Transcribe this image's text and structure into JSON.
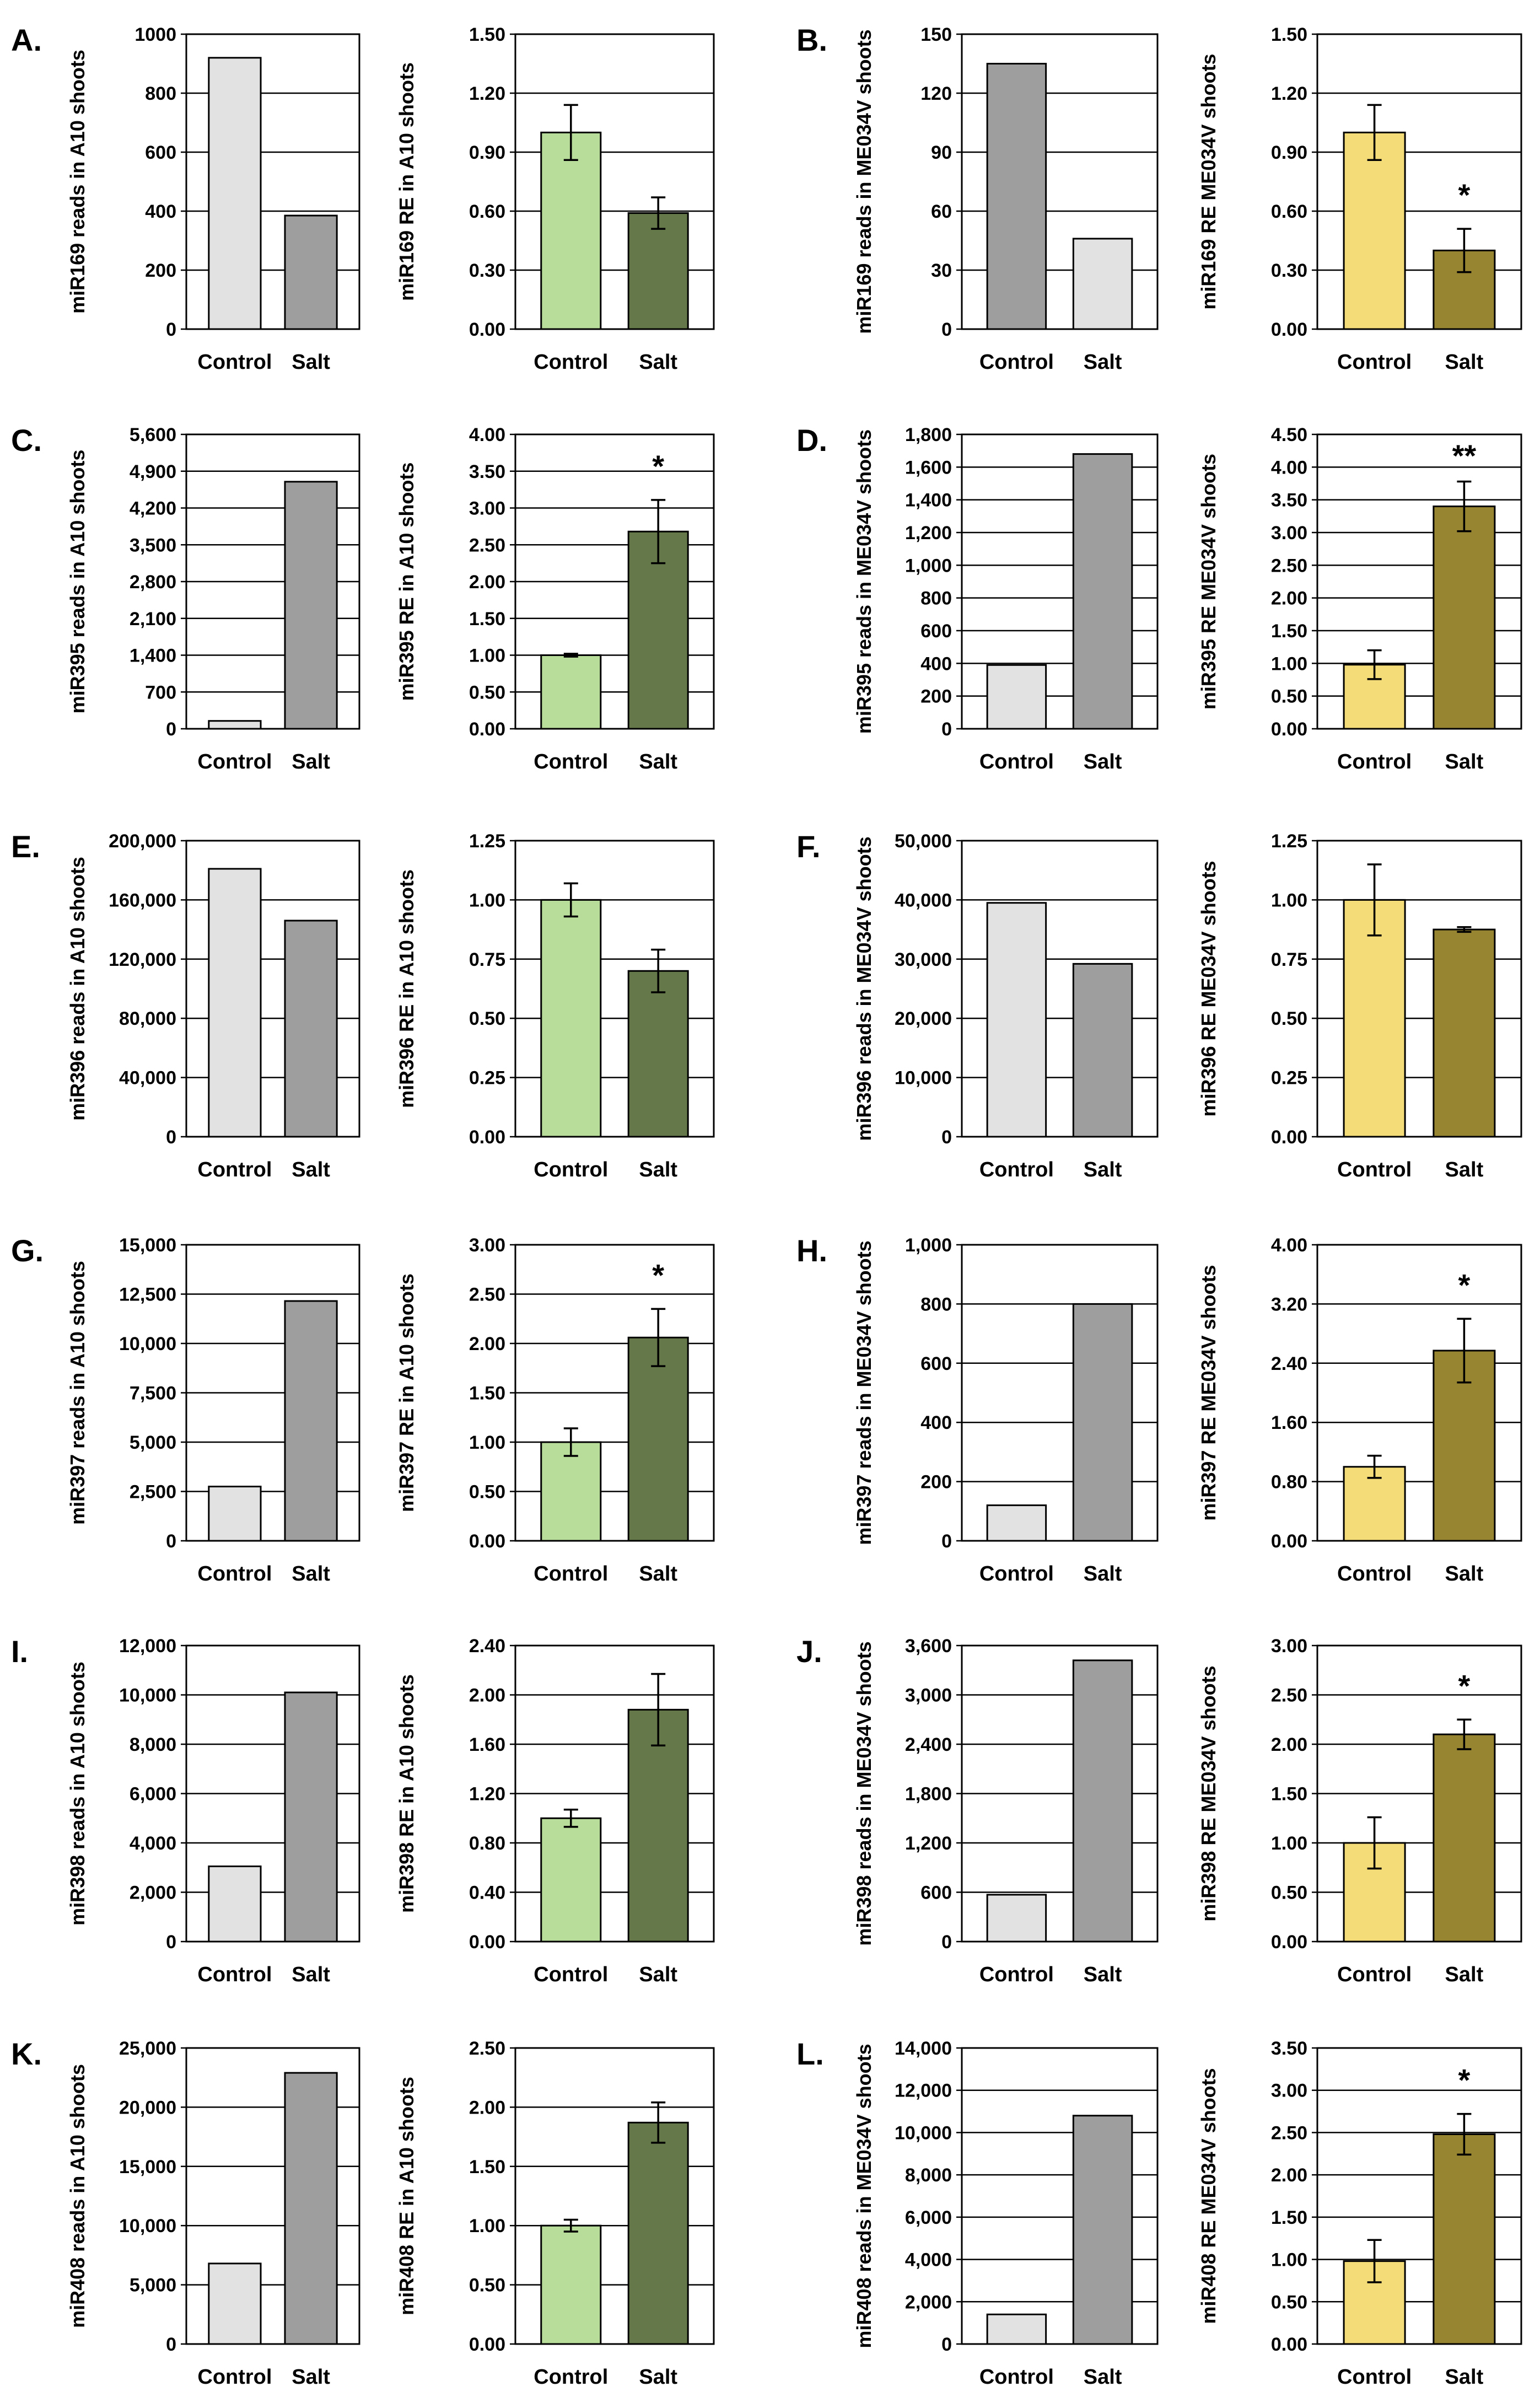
{
  "figure": {
    "background": "#ffffff"
  },
  "colors": {
    "reads_light": "#e2e2e2",
    "reads_dark": "#9e9e9e",
    "a10_control": "#b8dd9a",
    "a10_salt": "#65784a",
    "me_control": "#f4dc78",
    "me_salt": "#978532",
    "stroke": "#000000",
    "grid": "#000000"
  },
  "panels": [
    {
      "letter": "A."
    },
    {
      "letter": "B."
    },
    {
      "letter": "C."
    },
    {
      "letter": "D."
    },
    {
      "letter": "E."
    },
    {
      "letter": "F."
    },
    {
      "letter": "G."
    },
    {
      "letter": "H."
    },
    {
      "letter": "I."
    },
    {
      "letter": "J."
    },
    {
      "letter": "K."
    },
    {
      "letter": "L."
    }
  ],
  "chart_data": [
    {
      "type": "bar",
      "panel": "A.",
      "ylabel": "miR169 reads in A10 shoots",
      "categories": [
        "Control",
        "Salt"
      ],
      "values": [
        920,
        385
      ],
      "ylim": [
        0,
        1000
      ],
      "ticks": [
        "0",
        "200",
        "400",
        "600",
        "800",
        "1000"
      ],
      "bar_colors": [
        "reads_light",
        "reads_dark"
      ],
      "errors": null,
      "annotation": ""
    },
    {
      "type": "bar",
      "panel": "A.",
      "ylabel": "miR169 RE in A10 shoots",
      "categories": [
        "Control",
        "Salt"
      ],
      "values": [
        1.0,
        0.59
      ],
      "ylim": [
        0,
        1.5
      ],
      "ticks": [
        "0.00",
        "0.30",
        "0.60",
        "0.90",
        "1.20",
        "1.50"
      ],
      "bar_colors": [
        "a10_control",
        "a10_salt"
      ],
      "errors": [
        0.14,
        0.08
      ],
      "annotation": ""
    },
    {
      "type": "bar",
      "panel": "B.",
      "ylabel": "miR169 reads in ME034V shoots",
      "categories": [
        "Control",
        "Salt"
      ],
      "values": [
        135,
        46
      ],
      "ylim": [
        0,
        150
      ],
      "ticks": [
        "0",
        "30",
        "60",
        "90",
        "120",
        "150"
      ],
      "bar_colors": [
        "reads_dark",
        "reads_light"
      ],
      "errors": null,
      "annotation": ""
    },
    {
      "type": "bar",
      "panel": "B.",
      "ylabel": "miR169 RE ME034V shoots",
      "categories": [
        "Control",
        "Salt"
      ],
      "values": [
        1.0,
        0.4
      ],
      "ylim": [
        0,
        1.5
      ],
      "ticks": [
        "0.00",
        "0.30",
        "0.60",
        "0.90",
        "1.20",
        "1.50"
      ],
      "bar_colors": [
        "me_control",
        "me_salt"
      ],
      "errors": [
        0.14,
        0.11
      ],
      "annotation": "*"
    },
    {
      "type": "bar",
      "panel": "C.",
      "ylabel": "miR395 reads in A10 shoots",
      "categories": [
        "Control",
        "Salt"
      ],
      "values": [
        150,
        4700
      ],
      "ylim": [
        0,
        5600
      ],
      "ticks": [
        "0",
        "700",
        "1,400",
        "2,100",
        "2,800",
        "3,500",
        "4,200",
        "4,900",
        "5,600"
      ],
      "bar_colors": [
        "reads_light",
        "reads_dark"
      ],
      "errors": null,
      "annotation": ""
    },
    {
      "type": "bar",
      "panel": "C.",
      "ylabel": "miR395 RE in A10 shoots",
      "categories": [
        "Control",
        "Salt"
      ],
      "values": [
        1.0,
        2.68
      ],
      "ylim": [
        0,
        4.0
      ],
      "ticks": [
        "0.00",
        "0.50",
        "1.00",
        "1.50",
        "2.00",
        "2.50",
        "3.00",
        "3.50",
        "4.00"
      ],
      "bar_colors": [
        "a10_control",
        "a10_salt"
      ],
      "errors": [
        0.02,
        0.43
      ],
      "annotation": "*"
    },
    {
      "type": "bar",
      "panel": "D.",
      "ylabel": "miR395 reads in ME034V shoots",
      "categories": [
        "Control",
        "Salt"
      ],
      "values": [
        390,
        1680
      ],
      "ylim": [
        0,
        1800
      ],
      "ticks": [
        "0",
        "200",
        "400",
        "600",
        "800",
        "1,000",
        "1,200",
        "1,400",
        "1,600",
        "1,800"
      ],
      "bar_colors": [
        "reads_light",
        "reads_dark"
      ],
      "errors": null,
      "annotation": ""
    },
    {
      "type": "bar",
      "panel": "D.",
      "ylabel": "miR395 RE ME034V shoots",
      "categories": [
        "Control",
        "Salt"
      ],
      "values": [
        0.98,
        3.4
      ],
      "ylim": [
        0,
        4.5
      ],
      "ticks": [
        "0.00",
        "0.50",
        "1.00",
        "1.50",
        "2.00",
        "2.50",
        "3.00",
        "3.50",
        "4.00",
        "4.50"
      ],
      "bar_colors": [
        "me_control",
        "me_salt"
      ],
      "errors": [
        0.22,
        0.38
      ],
      "annotation": "**"
    },
    {
      "type": "bar",
      "panel": "E.",
      "ylabel": "miR396 reads in A10 shoots",
      "categories": [
        "Control",
        "Salt"
      ],
      "values": [
        181000,
        146000
      ],
      "ylim": [
        0,
        200000
      ],
      "ticks": [
        "0",
        "40,000",
        "80,000",
        "120,000",
        "160,000",
        "200,000"
      ],
      "bar_colors": [
        "reads_light",
        "reads_dark"
      ],
      "errors": null,
      "annotation": ""
    },
    {
      "type": "bar",
      "panel": "E.",
      "ylabel": "miR396 RE in A10 shoots",
      "categories": [
        "Control",
        "Salt"
      ],
      "values": [
        1.0,
        0.7
      ],
      "ylim": [
        0,
        1.25
      ],
      "ticks": [
        "0.00",
        "0.25",
        "0.50",
        "0.75",
        "1.00",
        "1.25"
      ],
      "bar_colors": [
        "a10_control",
        "a10_salt"
      ],
      "errors": [
        0.07,
        0.09
      ],
      "annotation": ""
    },
    {
      "type": "bar",
      "panel": "F.",
      "ylabel": "miR396 reads in ME034V shoots",
      "categories": [
        "Control",
        "Salt"
      ],
      "values": [
        39500,
        29200
      ],
      "ylim": [
        0,
        50000
      ],
      "ticks": [
        "0",
        "10,000",
        "20,000",
        "30,000",
        "40,000",
        "50,000"
      ],
      "bar_colors": [
        "reads_light",
        "reads_dark"
      ],
      "errors": null,
      "annotation": ""
    },
    {
      "type": "bar",
      "panel": "F.",
      "ylabel": "miR396 RE ME034V shoots",
      "categories": [
        "Control",
        "Salt"
      ],
      "values": [
        1.0,
        0.875
      ],
      "ylim": [
        0,
        1.25
      ],
      "ticks": [
        "0.00",
        "0.25",
        "0.50",
        "0.75",
        "1.00",
        "1.25"
      ],
      "bar_colors": [
        "me_control",
        "me_salt"
      ],
      "errors": [
        0.15,
        0.01
      ],
      "annotation": ""
    },
    {
      "type": "bar",
      "panel": "G.",
      "ylabel": "miR397 reads in A10 shoots",
      "categories": [
        "Control",
        "Salt"
      ],
      "values": [
        2750,
        12150
      ],
      "ylim": [
        0,
        15000
      ],
      "ticks": [
        "0",
        "2,500",
        "5,000",
        "7,500",
        "10,000",
        "12,500",
        "15,000"
      ],
      "bar_colors": [
        "reads_light",
        "reads_dark"
      ],
      "errors": null,
      "annotation": ""
    },
    {
      "type": "bar",
      "panel": "G.",
      "ylabel": "miR397 RE in A10 shoots",
      "categories": [
        "Control",
        "Salt"
      ],
      "values": [
        1.0,
        2.06
      ],
      "ylim": [
        0,
        3.0
      ],
      "ticks": [
        "0.00",
        "0.50",
        "1.00",
        "1.50",
        "2.00",
        "2.50",
        "3.00"
      ],
      "bar_colors": [
        "a10_control",
        "a10_salt"
      ],
      "errors": [
        0.14,
        0.29
      ],
      "annotation": "*"
    },
    {
      "type": "bar",
      "panel": "H.",
      "ylabel": "miR397 reads in ME034V shoots",
      "categories": [
        "Control",
        "Salt"
      ],
      "values": [
        120,
        800
      ],
      "ylim": [
        0,
        1000
      ],
      "ticks": [
        "0",
        "200",
        "400",
        "600",
        "800",
        "1,000"
      ],
      "bar_colors": [
        "reads_light",
        "reads_dark"
      ],
      "errors": null,
      "annotation": ""
    },
    {
      "type": "bar",
      "panel": "H.",
      "ylabel": "miR397 RE ME034V shoots",
      "categories": [
        "Control",
        "Salt"
      ],
      "values": [
        1.0,
        2.57
      ],
      "ylim": [
        0,
        4.0
      ],
      "ticks": [
        "0.00",
        "0.80",
        "1.60",
        "2.40",
        "3.20",
        "4.00"
      ],
      "bar_colors": [
        "me_control",
        "me_salt"
      ],
      "errors": [
        0.15,
        0.43
      ],
      "annotation": "*"
    },
    {
      "type": "bar",
      "panel": "I.",
      "ylabel": "miR398 reads in A10 shoots",
      "categories": [
        "Control",
        "Salt"
      ],
      "values": [
        3050,
        10100
      ],
      "ylim": [
        0,
        12000
      ],
      "ticks": [
        "0",
        "2,000",
        "4,000",
        "6,000",
        "8,000",
        "10,000",
        "12,000"
      ],
      "bar_colors": [
        "reads_light",
        "reads_dark"
      ],
      "errors": null,
      "annotation": ""
    },
    {
      "type": "bar",
      "panel": "I.",
      "ylabel": "miR398 RE in A10 shoots",
      "categories": [
        "Control",
        "Salt"
      ],
      "values": [
        1.0,
        1.88
      ],
      "ylim": [
        0,
        2.4
      ],
      "ticks": [
        "0.00",
        "0.40",
        "0.80",
        "1.20",
        "1.60",
        "2.00",
        "2.40"
      ],
      "bar_colors": [
        "a10_control",
        "a10_salt"
      ],
      "errors": [
        0.07,
        0.29
      ],
      "annotation": ""
    },
    {
      "type": "bar",
      "panel": "J.",
      "ylabel": "miR398 reads in ME034V shoots",
      "categories": [
        "Control",
        "Salt"
      ],
      "values": [
        570,
        3420
      ],
      "ylim": [
        0,
        3600
      ],
      "ticks": [
        "0",
        "600",
        "1,200",
        "1,800",
        "2,400",
        "3,000",
        "3,600"
      ],
      "bar_colors": [
        "reads_light",
        "reads_dark"
      ],
      "errors": null,
      "annotation": ""
    },
    {
      "type": "bar",
      "panel": "J.",
      "ylabel": "miR398 RE ME034V shoots",
      "categories": [
        "Control",
        "Salt"
      ],
      "values": [
        1.0,
        2.1
      ],
      "ylim": [
        0,
        3.0
      ],
      "ticks": [
        "0.00",
        "0.50",
        "1.00",
        "1.50",
        "2.00",
        "2.50",
        "3.00"
      ],
      "bar_colors": [
        "me_control",
        "me_salt"
      ],
      "errors": [
        0.26,
        0.15
      ],
      "annotation": "*"
    },
    {
      "type": "bar",
      "panel": "K.",
      "ylabel": "miR408 reads in A10 shoots",
      "categories": [
        "Control",
        "Salt"
      ],
      "values": [
        6800,
        22900
      ],
      "ylim": [
        0,
        25000
      ],
      "ticks": [
        "0",
        "5,000",
        "10,000",
        "15,000",
        "20,000",
        "25,000"
      ],
      "bar_colors": [
        "reads_light",
        "reads_dark"
      ],
      "errors": null,
      "annotation": ""
    },
    {
      "type": "bar",
      "panel": "K.",
      "ylabel": "miR408 RE in A10 shoots",
      "categories": [
        "Control",
        "Salt"
      ],
      "values": [
        1.0,
        1.87
      ],
      "ylim": [
        0,
        2.5
      ],
      "ticks": [
        "0.00",
        "0.50",
        "1.00",
        "1.50",
        "2.00",
        "2.50"
      ],
      "bar_colors": [
        "a10_control",
        "a10_salt"
      ],
      "errors": [
        0.05,
        0.17
      ],
      "annotation": ""
    },
    {
      "type": "bar",
      "panel": "L.",
      "ylabel": "miR408 reads in ME034V shoots",
      "categories": [
        "Control",
        "Salt"
      ],
      "values": [
        1400,
        10800
      ],
      "ylim": [
        0,
        14000
      ],
      "ticks": [
        "0",
        "2,000",
        "4,000",
        "6,000",
        "8,000",
        "10,000",
        "12,000",
        "14,000"
      ],
      "bar_colors": [
        "reads_light",
        "reads_dark"
      ],
      "errors": null,
      "annotation": ""
    },
    {
      "type": "bar",
      "panel": "L.",
      "ylabel": "miR408 RE ME034V shoots",
      "categories": [
        "Control",
        "Salt"
      ],
      "values": [
        0.98,
        2.48
      ],
      "ylim": [
        0,
        3.5
      ],
      "ticks": [
        "0.00",
        "0.50",
        "1.00",
        "1.50",
        "2.00",
        "2.50",
        "3.00",
        "3.50"
      ],
      "bar_colors": [
        "me_control",
        "me_salt"
      ],
      "errors": [
        0.25,
        0.24
      ],
      "annotation": "*"
    }
  ]
}
